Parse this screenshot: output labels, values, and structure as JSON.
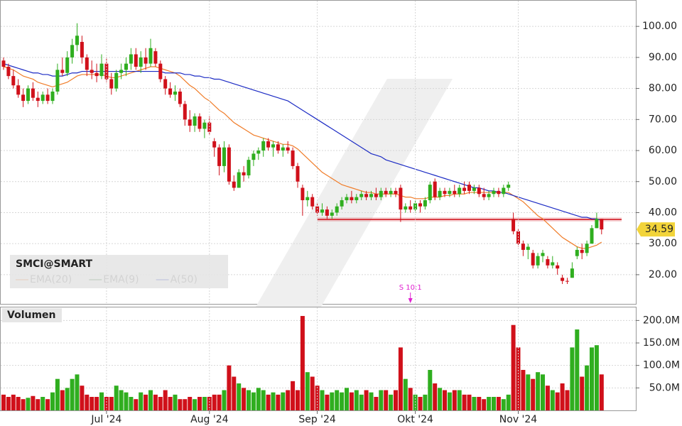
{
  "chart_data": [
    {
      "type": "candlestick",
      "title": "SMCI@SMART",
      "up_color": "#2fae1f",
      "down_color": "#d0101a",
      "open": [
        89,
        87,
        84,
        81,
        78,
        76,
        80,
        77,
        76,
        78,
        76,
        79,
        86,
        85,
        90,
        94,
        95,
        90,
        86,
        85,
        84,
        88,
        83,
        80,
        85,
        86,
        88,
        91,
        87,
        90,
        88,
        92,
        88,
        83,
        80,
        78,
        79,
        75,
        70,
        68,
        71,
        67,
        69,
        63,
        61,
        55,
        61,
        50,
        48,
        53,
        52,
        57,
        59,
        60,
        63,
        61,
        62,
        60,
        61,
        60,
        55,
        48,
        44,
        45,
        42,
        40,
        41,
        39,
        40,
        42,
        44,
        45,
        44,
        45,
        46,
        45,
        46,
        45,
        47,
        46,
        47,
        48,
        41,
        42,
        41,
        43,
        42,
        44,
        50,
        45,
        47,
        46,
        47,
        46,
        48,
        49,
        47,
        48,
        46,
        45,
        46,
        47,
        46,
        48,
        38,
        34,
        30,
        28,
        27,
        23,
        26,
        25,
        23,
        23,
        19,
        18,
        19,
        26,
        28,
        27,
        30,
        35,
        38
      ],
      "high": [
        90,
        88,
        86,
        83,
        80,
        81,
        82,
        79,
        79,
        80,
        80,
        88,
        90,
        92,
        96,
        101,
        97,
        91,
        89,
        88,
        91,
        90,
        85,
        86,
        88,
        90,
        93,
        93,
        92,
        93,
        96,
        93,
        89,
        84,
        82,
        81,
        80,
        76,
        73,
        72,
        72,
        70,
        71,
        64,
        62,
        63,
        62,
        52,
        54,
        55,
        58,
        60,
        61,
        64,
        64,
        63,
        63,
        62,
        63,
        61,
        56,
        49,
        47,
        46,
        43,
        43,
        42,
        41,
        43,
        45,
        46,
        47,
        46,
        47,
        47,
        47,
        48,
        48,
        48,
        48,
        48,
        49,
        43,
        44,
        44,
        44,
        45,
        50,
        51,
        48,
        48,
        48,
        49,
        49,
        50,
        50,
        49,
        49,
        48,
        47,
        48,
        48,
        49,
        50,
        40,
        35,
        31,
        30,
        28,
        27,
        28,
        26,
        26,
        24,
        20,
        19,
        24,
        29,
        30,
        31,
        36,
        40,
        38
      ],
      "low": [
        86,
        83,
        80,
        77,
        74,
        75,
        76,
        74,
        75,
        75,
        75,
        78,
        84,
        84,
        88,
        92,
        88,
        84,
        83,
        82,
        83,
        82,
        78,
        79,
        83,
        84,
        86,
        86,
        85,
        86,
        87,
        87,
        82,
        78,
        77,
        76,
        74,
        68,
        66,
        66,
        66,
        64,
        65,
        58,
        52,
        53,
        49,
        47,
        48,
        50,
        51,
        55,
        57,
        58,
        60,
        58,
        59,
        58,
        59,
        54,
        48,
        39,
        42,
        41,
        39,
        39,
        38,
        38,
        39,
        41,
        43,
        43,
        43,
        44,
        44,
        44,
        44,
        44,
        45,
        45,
        45,
        37,
        40,
        40,
        40,
        40,
        41,
        43,
        44,
        44,
        45,
        45,
        45,
        45,
        46,
        46,
        46,
        45,
        44,
        44,
        45,
        45,
        45,
        47,
        33,
        29,
        26,
        25,
        22,
        22,
        24,
        22,
        22,
        20,
        17,
        17,
        19,
        25,
        25,
        26,
        30,
        35,
        33
      ],
      "close": [
        87,
        84,
        81,
        78,
        76,
        80,
        77,
        76,
        78,
        76,
        79,
        86,
        85,
        90,
        94,
        97,
        90,
        86,
        85,
        84,
        88,
        83,
        80,
        85,
        86,
        88,
        91,
        87,
        90,
        88,
        93,
        88,
        83,
        80,
        78,
        79,
        75,
        70,
        68,
        71,
        67,
        69,
        66,
        61,
        55,
        61,
        50,
        48,
        53,
        52,
        57,
        59,
        60,
        63,
        61,
        62,
        60,
        61,
        60,
        55,
        50,
        44,
        45,
        42,
        40,
        41,
        39,
        40,
        42,
        44,
        45,
        44,
        45,
        46,
        45,
        46,
        45,
        47,
        46,
        47,
        46,
        41,
        42,
        41,
        43,
        42,
        44,
        49,
        45,
        47,
        46,
        47,
        46,
        48,
        47,
        47,
        48,
        46,
        45,
        46,
        47,
        46,
        48,
        49,
        34,
        30,
        28,
        29,
        23,
        26,
        27,
        23,
        24,
        22,
        18,
        18,
        22,
        28,
        27,
        30,
        35,
        38,
        34.59
      ],
      "series": [
        {
          "name": "EMA(20)",
          "color": "#f07c28",
          "values": [
            87,
            86.5,
            86,
            85,
            84,
            83.5,
            83,
            82,
            81.5,
            81,
            80.5,
            81,
            81.5,
            82,
            83,
            84,
            84.5,
            84.5,
            84.5,
            84.5,
            84.5,
            84,
            83.5,
            83.5,
            84,
            84.5,
            85,
            85.5,
            86,
            86.5,
            87,
            87,
            86.5,
            86,
            85.5,
            85,
            84,
            82.5,
            81,
            80,
            78.5,
            77,
            76,
            74.5,
            73,
            72,
            70.5,
            69,
            68,
            67,
            66,
            65,
            64.5,
            64,
            63.5,
            63,
            62.5,
            62,
            62,
            61.5,
            60.5,
            59,
            57.5,
            56,
            54.5,
            53,
            52,
            51,
            50,
            49,
            48.5,
            48,
            47.5,
            47,
            46.5,
            46.5,
            46,
            46,
            46,
            46,
            46,
            45.5,
            45,
            45,
            44.5,
            44.5,
            44.5,
            45,
            45,
            45,
            45.5,
            45.5,
            46,
            46,
            46,
            46.5,
            46.5,
            46.5,
            46.5,
            46.5,
            46.5,
            46.5,
            46.5,
            46.5,
            45.5,
            44.5,
            43.5,
            42,
            40.5,
            39,
            38,
            36.5,
            35,
            33.5,
            32,
            31,
            30,
            29,
            28.5,
            28.5,
            29,
            29.5,
            30.5
          ]
        },
        {
          "name": "EMA(9)",
          "color": "#1f6b1f"
        },
        {
          "name": "A(50)",
          "color": "#1c2bc4",
          "values": [
            88,
            87.5,
            87,
            86.5,
            86,
            85.5,
            85,
            85,
            84.5,
            84.5,
            84,
            84,
            84,
            84.5,
            85,
            85,
            85.5,
            85.5,
            85.5,
            85.5,
            85.5,
            85.5,
            85.5,
            85.5,
            85.5,
            85.5,
            85.5,
            85.5,
            85.5,
            85.5,
            85.5,
            85.5,
            85.5,
            85,
            85,
            85,
            85,
            84.5,
            84.5,
            84,
            84,
            83.5,
            83.5,
            83,
            83,
            82.5,
            82,
            81.5,
            81,
            80.5,
            80,
            79.5,
            79,
            78.5,
            78,
            77.5,
            77,
            76.5,
            76,
            75,
            74,
            73,
            72,
            71,
            70,
            69,
            68,
            67,
            66,
            65,
            64,
            63,
            62,
            61,
            60,
            59,
            58.5,
            58,
            57,
            56.5,
            56,
            55.5,
            55,
            54.5,
            54,
            53.5,
            53,
            52.5,
            52,
            51.5,
            51,
            50.5,
            50,
            49.5,
            49,
            48.5,
            48,
            48,
            47.5,
            47,
            47,
            46.5,
            46.5,
            46,
            45.5,
            45,
            44.5,
            44,
            43.5,
            43,
            42.5,
            42,
            41.5,
            41,
            40.5,
            40,
            39.5,
            39,
            38.5,
            38.5,
            38,
            38,
            37.5
          ]
        }
      ],
      "hline": {
        "value": 37.8,
        "from": 64,
        "color": "#d0101a"
      },
      "last_price": 34.59,
      "annotations": [
        {
          "text": "S 10:1",
          "x": 83,
          "color": "#e020d0"
        }
      ],
      "ylim": [
        10.6,
        108.5
      ],
      "yticks": [
        {
          "value": 20,
          "label": "20.00"
        },
        {
          "value": 30,
          "label": "30.00"
        },
        {
          "value": 40,
          "label": "40.00"
        },
        {
          "value": 50,
          "label": "50.00"
        },
        {
          "value": 60,
          "label": "60.00"
        },
        {
          "value": 70,
          "label": "70.00"
        },
        {
          "value": 80,
          "label": "80.00"
        },
        {
          "value": 90,
          "label": "90.00"
        },
        {
          "value": 100,
          "label": "100.00"
        }
      ],
      "grid": true
    },
    {
      "type": "bar",
      "title": "Volumen",
      "categories": [
        null,
        null,
        null,
        null,
        null,
        null,
        null,
        null,
        null,
        null,
        null,
        null,
        null,
        null,
        null,
        null,
        null,
        null,
        null,
        null,
        null,
        "Jul '24",
        null,
        null,
        null,
        null,
        null,
        null,
        null,
        null,
        null,
        null,
        null,
        null,
        null,
        null,
        null,
        null,
        null,
        null,
        null,
        null,
        "Aug '24",
        null,
        null,
        null,
        null,
        null,
        null,
        null,
        null,
        null,
        null,
        null,
        null,
        null,
        null,
        null,
        null,
        null,
        null,
        null,
        null,
        null,
        "Sep '24",
        null,
        null,
        null,
        null,
        null,
        null,
        null,
        null,
        null,
        null,
        null,
        null,
        null,
        null,
        null,
        null,
        null,
        null,
        null,
        "Okt '24",
        null,
        null,
        null,
        null,
        null,
        null,
        null,
        null,
        null,
        null,
        null,
        null,
        null,
        null,
        null,
        null,
        null,
        null,
        null,
        null,
        "Nov '24",
        null,
        null,
        null,
        null,
        null,
        null,
        null,
        null,
        null,
        null,
        null,
        null,
        null,
        null,
        null,
        null,
        null
      ],
      "values": [
        35,
        30,
        35,
        30,
        25,
        28,
        32,
        25,
        30,
        25,
        40,
        70,
        45,
        50,
        70,
        80,
        55,
        35,
        30,
        30,
        40,
        30,
        30,
        55,
        45,
        40,
        30,
        25,
        40,
        35,
        45,
        35,
        30,
        45,
        30,
        35,
        25,
        25,
        30,
        25,
        30,
        30,
        30,
        35,
        35,
        45,
        100,
        75,
        60,
        50,
        45,
        40,
        50,
        45,
        35,
        40,
        35,
        40,
        45,
        65,
        45,
        210,
        85,
        75,
        55,
        45,
        35,
        40,
        45,
        40,
        50,
        40,
        45,
        35,
        45,
        40,
        30,
        45,
        45,
        35,
        45,
        140,
        70,
        50,
        35,
        30,
        35,
        90,
        60,
        50,
        45,
        40,
        45,
        45,
        35,
        35,
        30,
        30,
        25,
        30,
        30,
        30,
        25,
        35,
        190,
        140,
        90,
        80,
        70,
        85,
        80,
        55,
        45,
        40,
        60,
        45,
        140,
        180,
        75,
        100,
        140,
        145,
        80
      ],
      "ylim": [
        0,
        229
      ],
      "yticks": [
        {
          "value": 50,
          "label": "50.0M"
        },
        {
          "value": 100,
          "label": "100.0M"
        },
        {
          "value": 150,
          "label": "150.0M"
        },
        {
          "value": 200,
          "label": "200.0M"
        }
      ],
      "grid": true
    }
  ]
}
